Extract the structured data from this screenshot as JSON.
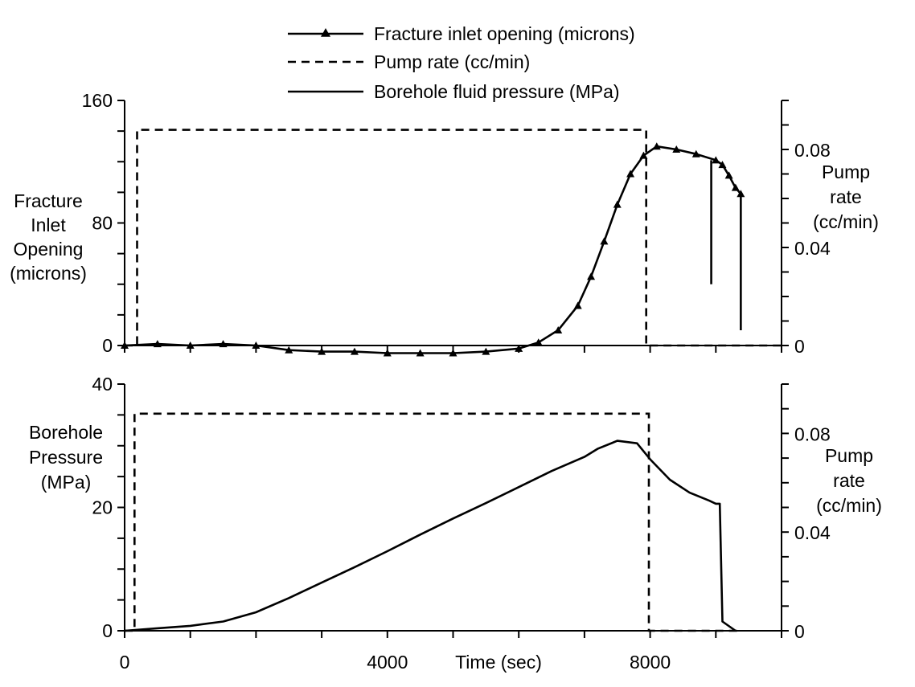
{
  "chart_data": [
    {
      "type": "line",
      "legend": {
        "placement": "top-center",
        "entries": [
          {
            "label": "Fracture inlet opening (microns)",
            "style": "solid-triangle"
          },
          {
            "label": "Pump rate (cc/min)",
            "style": "dashed"
          },
          {
            "label": "Borehole fluid pressure (MPa)",
            "style": "solid"
          }
        ]
      },
      "ylabel_left": [
        "Fracture",
        "Inlet",
        "Opening",
        "(microns)"
      ],
      "ylabel_right": [
        "Pump",
        "rate",
        "(cc/min)"
      ],
      "xlim": [
        0,
        10000
      ],
      "ylim_left": [
        0,
        160
      ],
      "ylim_right": [
        0,
        0.1
      ],
      "yticks_left": [
        0,
        80,
        160
      ],
      "yticks_right": [
        0,
        0.04,
        0.08
      ],
      "ytick_labels_right": [
        "0",
        "0.04",
        "0.08"
      ],
      "series": [
        {
          "name": "Fracture inlet opening (microns)",
          "axis": "left",
          "style": "solid-triangle",
          "x": [
            0,
            500,
            1000,
            1500,
            2000,
            2500,
            3000,
            3500,
            4000,
            4500,
            5000,
            5500,
            6000,
            6300,
            6600,
            6900,
            7100,
            7300,
            7500,
            7700,
            7900,
            8100,
            8400,
            8700,
            9000,
            9100,
            9200,
            9300,
            9380
          ],
          "y": [
            0,
            1,
            0,
            1,
            0,
            -3,
            -4,
            -4,
            -5,
            -5,
            -5,
            -4,
            -2,
            2,
            10,
            26,
            45,
            68,
            92,
            112,
            124,
            130,
            128,
            125,
            121,
            118,
            111,
            103,
            99
          ]
        },
        {
          "name": "Pump rate (cc/min)",
          "axis": "right",
          "style": "dashed",
          "x": [
            0,
            190,
            190,
            7940,
            7940,
            10000
          ],
          "y": [
            0,
            0,
            0.088,
            0.088,
            0,
            0
          ]
        }
      ]
    },
    {
      "type": "line",
      "xlabel": "Time (sec)",
      "ylabel_left": [
        "Borehole",
        "Pressure",
        "(MPa)"
      ],
      "ylabel_right": [
        "Pump",
        "rate",
        "(cc/min)"
      ],
      "xlim": [
        0,
        10000
      ],
      "ylim_left": [
        0,
        40
      ],
      "ylim_right": [
        0,
        0.1
      ],
      "xticks": [
        0,
        4000,
        8000
      ],
      "yticks_left": [
        0,
        20,
        40
      ],
      "yticks_right": [
        0,
        0.04,
        0.08
      ],
      "ytick_labels_right": [
        "0",
        "0.04",
        "0.08"
      ],
      "series": [
        {
          "name": "Borehole fluid pressure (MPa)",
          "axis": "left",
          "style": "solid",
          "x": [
            0,
            500,
            1000,
            1500,
            2000,
            2500,
            3000,
            3500,
            4000,
            4500,
            5000,
            5500,
            6000,
            6500,
            7000,
            7200,
            7500,
            7800,
            8000,
            8300,
            8600,
            8900,
            9000,
            9060,
            9100,
            9300
          ],
          "y": [
            0,
            0.4,
            0.8,
            1.5,
            3,
            5.3,
            7.8,
            10.3,
            12.9,
            15.6,
            18.2,
            20.7,
            23.3,
            25.9,
            28.2,
            29.5,
            30.8,
            30.4,
            27.8,
            24.5,
            22.4,
            21.1,
            20.6,
            20.6,
            1.5,
            0
          ]
        },
        {
          "name": "Pump rate (cc/min)",
          "axis": "right",
          "style": "dashed",
          "x": [
            0,
            150,
            150,
            7980,
            7980,
            9400
          ],
          "y": [
            0,
            0,
            0.088,
            0.088,
            0,
            0
          ]
        }
      ]
    }
  ]
}
